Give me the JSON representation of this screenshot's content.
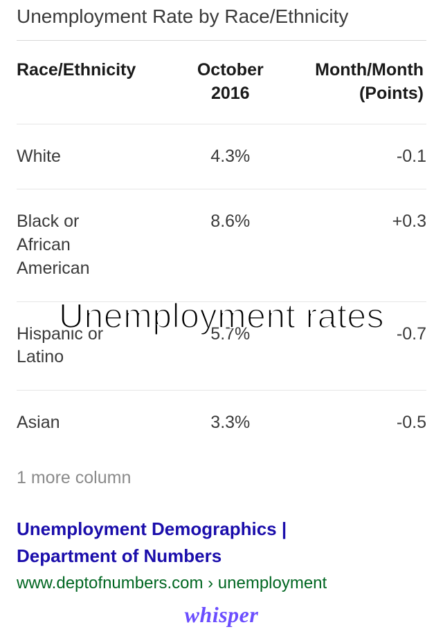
{
  "card": {
    "title": "Unemployment Rate by Race/Ethnicity",
    "columns": {
      "c1": "Race/Ethnicity",
      "c2_line1": "October",
      "c2_line2": "2016",
      "c3_line1": "Month/Month",
      "c3_line2": "(Points)"
    },
    "rows": [
      {
        "label": "White",
        "value": "4.3%",
        "delta": "-0.1"
      },
      {
        "label": "Black or\nAfrican\nAmerican",
        "value": "8.6%",
        "delta": "+0.3"
      },
      {
        "label": "Hispanic or\nLatino",
        "value": "5.7%",
        "delta": "-0.7"
      },
      {
        "label": "Asian",
        "value": "3.3%",
        "delta": "-0.5"
      }
    ],
    "more": "1 more column"
  },
  "result": {
    "title_line1": "Unemployment Demographics |",
    "title_line2": "Department of Numbers",
    "url": "www.deptofnumbers.com › unemployment"
  },
  "overlay": {
    "caption": "Unemployment rates"
  },
  "footer": {
    "brand": "whisper"
  },
  "style": {
    "title_color": "#3a3a3a",
    "header_color": "#1a1a1a",
    "cell_color": "#3a3a3a",
    "border_color": "#e6e6e6",
    "more_color": "#8a8a8a",
    "link_color": "#1a0dab",
    "url_color": "#006621",
    "overlay_text_color": "#000000",
    "overlay_stroke_color": "#ffffff",
    "brand_color": "#6b4eff",
    "background": "#ffffff",
    "title_fontsize": 28,
    "header_fontsize": 25,
    "cell_fontsize": 25,
    "overlay_fontsize": 50,
    "brand_fontsize": 32
  }
}
